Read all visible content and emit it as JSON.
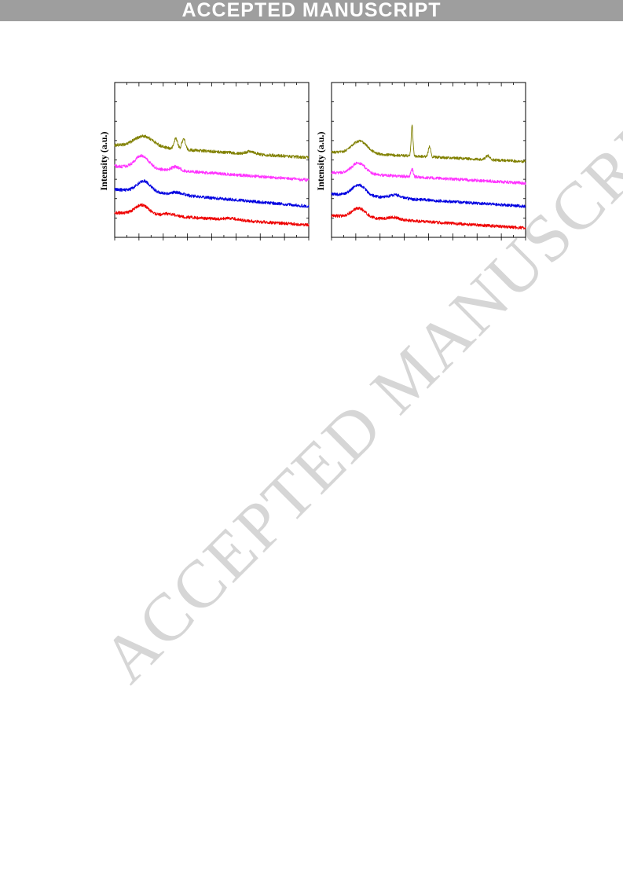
{
  "header": {
    "banner_text": "ACCEPTED MANUSCRIPT"
  },
  "watermark": {
    "text": "ACCEPTED MANUSCRIPT"
  },
  "chart_data": [
    {
      "type": "line",
      "ylabel": "Intensity (a.u.)",
      "xlim": [
        0,
        100
      ],
      "ylim": [
        0,
        100
      ],
      "grid": false,
      "series": [
        {
          "color": "#808000",
          "baseline": 59.5,
          "slope": -0.08,
          "noise": 1.0,
          "peaks": [
            [
              15,
              7,
              5
            ],
            [
              31.5,
              7,
              0.9
            ],
            [
              35.5,
              7,
              0.9
            ],
            [
              70,
              1.8,
              2
            ]
          ]
        },
        {
          "color": "#ff33ff",
          "baseline": 46,
          "slope": -0.09,
          "noise": 1.0,
          "peaks": [
            [
              14,
              8,
              3.5
            ],
            [
              31.5,
              2.5,
              2
            ]
          ]
        },
        {
          "color": "#0000e0",
          "baseline": 31,
          "slope": -0.11,
          "noise": 1.0,
          "peaks": [
            [
              15,
              7,
              3.5
            ],
            [
              32,
              1.5,
              3
            ]
          ]
        },
        {
          "color": "#ee0000",
          "baseline": 16,
          "slope": -0.08,
          "noise": 1.0,
          "peaks": [
            [
              14,
              6,
              3.5
            ],
            [
              28,
              1.5,
              3
            ],
            [
              60,
              1,
              4
            ]
          ]
        }
      ]
    },
    {
      "type": "line",
      "ylabel": "Intensity (a.u.)",
      "xlim": [
        0,
        100
      ],
      "ylim": [
        0,
        100
      ],
      "grid": false,
      "series": [
        {
          "color": "#808000",
          "baseline": 55,
          "slope": -0.06,
          "noise": 0.9,
          "peaks": [
            [
              14.5,
              8,
              4
            ],
            [
              41.5,
              20,
              0.45
            ],
            [
              50.5,
              7,
              0.6
            ],
            [
              80.5,
              2.5,
              1
            ]
          ]
        },
        {
          "color": "#ff33ff",
          "baseline": 42,
          "slope": -0.07,
          "noise": 1.0,
          "peaks": [
            [
              14,
              7,
              3.5
            ],
            [
              41.5,
              5,
              0.6
            ]
          ]
        },
        {
          "color": "#0000e0",
          "baseline": 28,
          "slope": -0.08,
          "noise": 1.0,
          "peaks": [
            [
              14,
              7,
              3.5
            ],
            [
              33,
              2,
              3
            ]
          ]
        },
        {
          "color": "#ee0000",
          "baseline": 14,
          "slope": -0.08,
          "noise": 1.0,
          "peaks": [
            [
              14,
              6,
              3.5
            ],
            [
              32,
              1.5,
              3
            ]
          ]
        }
      ]
    }
  ]
}
